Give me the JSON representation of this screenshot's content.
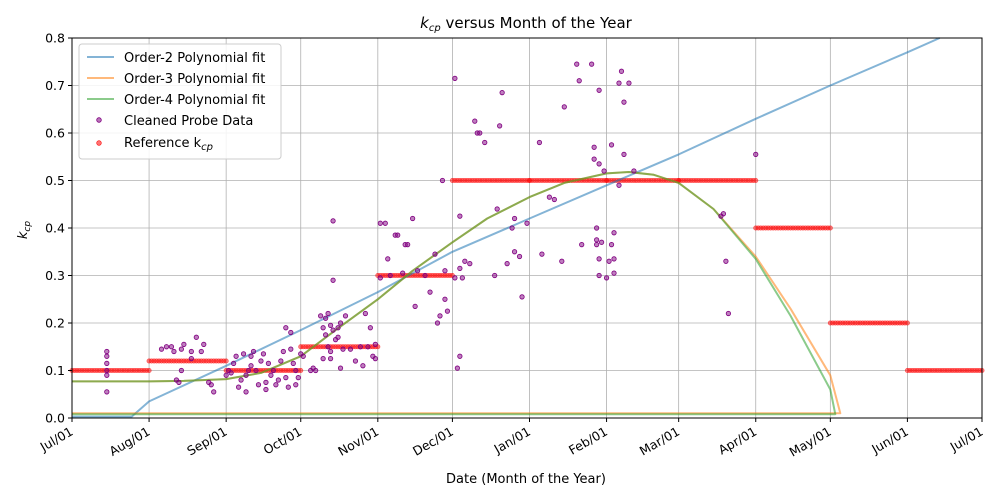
{
  "chart_data": {
    "type": "scatter",
    "title_main": "k",
    "title_sub": "cp",
    "title_rest": " versus Month of the Year",
    "xlabel": "Date (Month of the Year)",
    "ylabel_main": "k",
    "ylabel_sub": "cp",
    "xlim": [
      "2019-07-01",
      "2020-07-01"
    ],
    "ylim": [
      0,
      0.8
    ],
    "grid": true,
    "legend_position": "upper-left",
    "x_ticks": [
      "Jul/01",
      "Aug/01",
      "Sep/01",
      "Oct/01",
      "Nov/01",
      "Dec/01",
      "Jan/01",
      "Feb/01",
      "Mar/01",
      "Apr/01",
      "May/01",
      "Jun/01",
      "Jul/01"
    ],
    "y_ticks": [
      "0.0",
      "0.1",
      "0.2",
      "0.3",
      "0.4",
      "0.5",
      "0.6",
      "0.7",
      "0.8"
    ],
    "month_days": [
      0,
      31,
      62,
      92,
      123,
      153,
      184,
      215,
      244,
      275,
      305,
      336,
      366
    ],
    "legend": [
      {
        "label": "Order-2 Polynomial fit",
        "kind": "line",
        "color": "#1f77b4"
      },
      {
        "label": "Order-3 Polynomial fit",
        "kind": "line",
        "color": "#ff7f0e"
      },
      {
        "label": "Order-4 Polynomial fit",
        "kind": "line",
        "color": "#2ca02c"
      },
      {
        "label": "Cleaned Probe Data",
        "kind": "dot",
        "color": "#800080"
      },
      {
        "label_main": "Reference k",
        "label_sub": "cp",
        "kind": "dot",
        "color": "#ff0000"
      }
    ],
    "reference_kcp": [
      {
        "month": "Jul",
        "value": 0.1
      },
      {
        "month": "Aug",
        "value": 0.12
      },
      {
        "month": "Sep",
        "value": 0.1
      },
      {
        "month": "Oct",
        "value": 0.15
      },
      {
        "month": "Nov",
        "value": 0.3
      },
      {
        "month": "Dec",
        "value": 0.5
      },
      {
        "month": "Jan",
        "value": 0.5
      },
      {
        "month": "Feb",
        "value": 0.5
      },
      {
        "month": "Mar",
        "value": 0.5
      },
      {
        "month": "Apr",
        "value": 0.4
      },
      {
        "month": "May",
        "value": 0.2
      },
      {
        "month": "Jun",
        "value": 0.1
      }
    ],
    "series": [
      {
        "name": "Order-2 Polynomial fit",
        "color": "#1f77b4",
        "x": [
          "Jul/01",
          "Jul/25",
          "Aug/01",
          "Sep/01",
          "Oct/01",
          "Nov/01",
          "Dec/01",
          "Jan/01",
          "Feb/01",
          "Mar/01",
          "Apr/01",
          "May/01",
          "Jun/01",
          "Jun/14"
        ],
        "y": [
          0.003,
          0.003,
          0.035,
          0.11,
          0.185,
          0.265,
          0.35,
          0.42,
          0.49,
          0.555,
          0.63,
          0.7,
          0.77,
          0.8
        ]
      },
      {
        "name": "Order-3 Polynomial fit",
        "color": "#ff7f0e",
        "x": [
          "Jul/01",
          "Aug/01",
          "Aug/15",
          "Sep/01",
          "Sep/15",
          "Oct/01",
          "Oct/15",
          "Nov/01",
          "Nov/15",
          "Dec/01",
          "Dec/15",
          "Jan/01",
          "Jan/15",
          "Feb/01",
          "Feb/10",
          "Feb/20",
          "Mar/01",
          "Mar/15",
          "Apr/01",
          "Apr/15",
          "May/01",
          "May/05",
          "Jul/01"
        ],
        "y": [
          0.077,
          0.077,
          0.078,
          0.082,
          0.095,
          0.13,
          0.185,
          0.25,
          0.31,
          0.37,
          0.42,
          0.465,
          0.495,
          0.515,
          0.518,
          0.512,
          0.495,
          0.44,
          0.34,
          0.23,
          0.09,
          0.01,
          0.01
        ]
      },
      {
        "name": "Order-4 Polynomial fit",
        "color": "#2ca02c",
        "x": [
          "Jul/01",
          "Aug/01",
          "Aug/15",
          "Sep/01",
          "Sep/15",
          "Oct/01",
          "Oct/15",
          "Nov/01",
          "Nov/15",
          "Dec/01",
          "Dec/15",
          "Jan/01",
          "Jan/15",
          "Feb/01",
          "Feb/10",
          "Feb/20",
          "Mar/01",
          "Mar/15",
          "Apr/01",
          "Apr/15",
          "May/01",
          "May/03",
          "Jul/01"
        ],
        "y": [
          0.077,
          0.077,
          0.078,
          0.082,
          0.095,
          0.13,
          0.185,
          0.25,
          0.31,
          0.37,
          0.42,
          0.465,
          0.495,
          0.515,
          0.518,
          0.512,
          0.495,
          0.44,
          0.335,
          0.215,
          0.06,
          0.008,
          0.008
        ]
      }
    ],
    "cleaned_probe_data": [
      [
        14,
        0.055
      ],
      [
        14,
        0.09
      ],
      [
        14,
        0.1
      ],
      [
        14,
        0.115
      ],
      [
        14,
        0.13
      ],
      [
        14,
        0.14
      ],
      [
        36,
        0.145
      ],
      [
        38,
        0.15
      ],
      [
        40,
        0.15
      ],
      [
        41,
        0.14
      ],
      [
        42,
        0.08
      ],
      [
        43,
        0.075
      ],
      [
        44,
        0.1
      ],
      [
        44,
        0.145
      ],
      [
        45,
        0.155
      ],
      [
        48,
        0.125
      ],
      [
        48,
        0.14
      ],
      [
        50,
        0.17
      ],
      [
        52,
        0.14
      ],
      [
        53,
        0.155
      ],
      [
        55,
        0.075
      ],
      [
        56,
        0.07
      ],
      [
        57,
        0.055
      ],
      [
        62,
        0.09
      ],
      [
        63,
        0.1
      ],
      [
        64,
        0.095
      ],
      [
        65,
        0.115
      ],
      [
        66,
        0.13
      ],
      [
        67,
        0.065
      ],
      [
        68,
        0.08
      ],
      [
        69,
        0.135
      ],
      [
        70,
        0.055
      ],
      [
        70,
        0.09
      ],
      [
        71,
        0.1
      ],
      [
        72,
        0.11
      ],
      [
        72,
        0.13
      ],
      [
        73,
        0.14
      ],
      [
        74,
        0.1
      ],
      [
        75,
        0.07
      ],
      [
        76,
        0.12
      ],
      [
        77,
        0.135
      ],
      [
        78,
        0.075
      ],
      [
        78,
        0.06
      ],
      [
        79,
        0.115
      ],
      [
        80,
        0.09
      ],
      [
        81,
        0.1
      ],
      [
        82,
        0.07
      ],
      [
        83,
        0.08
      ],
      [
        84,
        0.12
      ],
      [
        85,
        0.14
      ],
      [
        86,
        0.19
      ],
      [
        86,
        0.085
      ],
      [
        87,
        0.065
      ],
      [
        88,
        0.145
      ],
      [
        88,
        0.18
      ],
      [
        89,
        0.115
      ],
      [
        90,
        0.1
      ],
      [
        90,
        0.07
      ],
      [
        91,
        0.085
      ],
      [
        92,
        0.135
      ],
      [
        93,
        0.13
      ],
      [
        96,
        0.1
      ],
      [
        97,
        0.105
      ],
      [
        98,
        0.1
      ],
      [
        100,
        0.215
      ],
      [
        101,
        0.19
      ],
      [
        101,
        0.125
      ],
      [
        102,
        0.21
      ],
      [
        102,
        0.175
      ],
      [
        103,
        0.22
      ],
      [
        103,
        0.15
      ],
      [
        104,
        0.195
      ],
      [
        104,
        0.14
      ],
      [
        104,
        0.125
      ],
      [
        105,
        0.185
      ],
      [
        105,
        0.29
      ],
      [
        105,
        0.415
      ],
      [
        106,
        0.165
      ],
      [
        107,
        0.19
      ],
      [
        107,
        0.17
      ],
      [
        108,
        0.2
      ],
      [
        108,
        0.105
      ],
      [
        109,
        0.145
      ],
      [
        110,
        0.215
      ],
      [
        112,
        0.145
      ],
      [
        114,
        0.12
      ],
      [
        116,
        0.15
      ],
      [
        117,
        0.11
      ],
      [
        118,
        0.22
      ],
      [
        119,
        0.15
      ],
      [
        120,
        0.19
      ],
      [
        121,
        0.13
      ],
      [
        122,
        0.125
      ],
      [
        122,
        0.155
      ],
      [
        124,
        0.295
      ],
      [
        124,
        0.41
      ],
      [
        126,
        0.41
      ],
      [
        127,
        0.335
      ],
      [
        128,
        0.3
      ],
      [
        130,
        0.385
      ],
      [
        131,
        0.385
      ],
      [
        133,
        0.305
      ],
      [
        134,
        0.365
      ],
      [
        135,
        0.365
      ],
      [
        137,
        0.42
      ],
      [
        138,
        0.235
      ],
      [
        139,
        0.31
      ],
      [
        142,
        0.3
      ],
      [
        144,
        0.265
      ],
      [
        146,
        0.345
      ],
      [
        147,
        0.2
      ],
      [
        148,
        0.215
      ],
      [
        149,
        0.5
      ],
      [
        150,
        0.25
      ],
      [
        150,
        0.31
      ],
      [
        151,
        0.225
      ],
      [
        154,
        0.715
      ],
      [
        154,
        0.295
      ],
      [
        155,
        0.105
      ],
      [
        156,
        0.13
      ],
      [
        156,
        0.315
      ],
      [
        156,
        0.425
      ],
      [
        157,
        0.295
      ],
      [
        158,
        0.33
      ],
      [
        160,
        0.325
      ],
      [
        162,
        0.625
      ],
      [
        163,
        0.6
      ],
      [
        164,
        0.6
      ],
      [
        166,
        0.58
      ],
      [
        170,
        0.3
      ],
      [
        171,
        0.44
      ],
      [
        172,
        0.615
      ],
      [
        173,
        0.685
      ],
      [
        175,
        0.325
      ],
      [
        177,
        0.4
      ],
      [
        178,
        0.35
      ],
      [
        178,
        0.42
      ],
      [
        180,
        0.34
      ],
      [
        181,
        0.255
      ],
      [
        183,
        0.41
      ],
      [
        188,
        0.58
      ],
      [
        189,
        0.345
      ],
      [
        192,
        0.465
      ],
      [
        194,
        0.46
      ],
      [
        197,
        0.33
      ],
      [
        198,
        0.655
      ],
      [
        203,
        0.745
      ],
      [
        204,
        0.71
      ],
      [
        205,
        0.365
      ],
      [
        209,
        0.745
      ],
      [
        210,
        0.57
      ],
      [
        210,
        0.545
      ],
      [
        211,
        0.4
      ],
      [
        211,
        0.375
      ],
      [
        211,
        0.365
      ],
      [
        212,
        0.335
      ],
      [
        212,
        0.3
      ],
      [
        212,
        0.535
      ],
      [
        212,
        0.69
      ],
      [
        213,
        0.37
      ],
      [
        214,
        0.52
      ],
      [
        215,
        0.295
      ],
      [
        216,
        0.33
      ],
      [
        217,
        0.365
      ],
      [
        217,
        0.575
      ],
      [
        218,
        0.39
      ],
      [
        218,
        0.335
      ],
      [
        218,
        0.305
      ],
      [
        220,
        0.49
      ],
      [
        220,
        0.705
      ],
      [
        221,
        0.73
      ],
      [
        222,
        0.555
      ],
      [
        222,
        0.665
      ],
      [
        224,
        0.705
      ],
      [
        226,
        0.52
      ],
      [
        261,
        0.425
      ],
      [
        262,
        0.43
      ],
      [
        263,
        0.33
      ],
      [
        264,
        0.22
      ],
      [
        275,
        0.555
      ]
    ]
  }
}
